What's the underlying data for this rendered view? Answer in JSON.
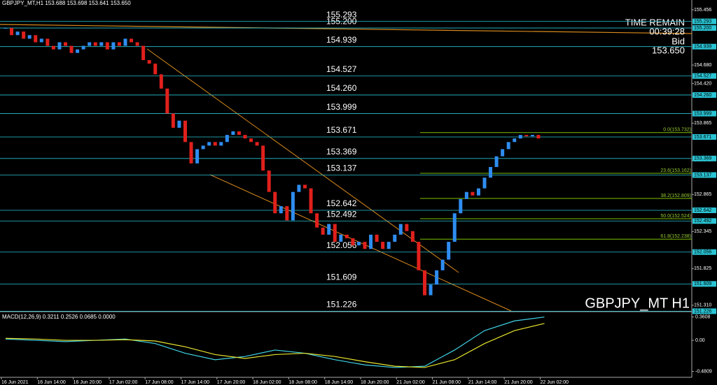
{
  "chart_data": {
    "type": "candlestick",
    "title": "GBPJPY_MT,H1  153.688 153.698 153.641 153.650",
    "symbol_label": "GBPJPY_MT H1",
    "info": [
      "TIME REMAIN",
      "00:39:28",
      "Bid",
      "153.650"
    ],
    "closes": [
      155.2,
      155.1,
      155.15,
      155.05,
      155.1,
      155.0,
      155.05,
      154.95,
      154.9,
      155.0,
      154.95,
      154.85,
      154.9,
      154.95,
      155.0,
      154.95,
      155.0,
      154.9,
      155.0,
      154.95,
      155.05,
      155.0,
      154.95,
      154.75,
      154.7,
      154.55,
      154.35,
      154.0,
      153.8,
      153.9,
      153.6,
      153.3,
      153.5,
      153.55,
      153.6,
      153.55,
      153.6,
      153.7,
      153.75,
      153.7,
      153.65,
      153.6,
      153.55,
      153.2,
      152.9,
      152.6,
      152.7,
      152.5,
      152.9,
      153.0,
      152.95,
      152.6,
      152.4,
      152.3,
      152.45,
      152.2,
      152.3,
      152.25,
      152.15,
      152.2,
      152.1,
      152.3,
      152.2,
      152.1,
      152.2,
      152.3,
      152.45,
      152.35,
      152.2,
      151.8,
      151.45,
      151.6,
      151.8,
      151.95,
      152.2,
      152.6,
      152.8,
      152.9,
      152.85,
      152.95,
      153.1,
      153.25,
      153.4,
      153.5,
      153.6,
      153.65,
      153.7,
      153.68,
      153.7,
      153.65
    ],
    "ylim": [
      151.23,
      155.593
    ],
    "yticks": [
      155.456,
      {
        "value": 154.68,
        "label": "154.680"
      },
      {
        "value": 154.42,
        "label": "154.420"
      },
      153.865,
      153.345,
      152.865,
      152.345,
      151.825,
      {
        "value": 151.31,
        "label": "151.310"
      }
    ],
    "levels": [
      155.293,
      {
        "value": 155.2,
        "label": "155.200"
      },
      154.939,
      154.527,
      {
        "value": 154.26,
        "label": "154.260"
      },
      153.999,
      153.671,
      153.369,
      153.137,
      152.642,
      152.492,
      152.056,
      151.609,
      151.226
    ],
    "fibs": [
      {
        "value": 153.732,
        "label": "0.0(153.732)"
      },
      {
        "value": 153.162,
        "label": "23.6(153.162)"
      },
      {
        "value": 152.809,
        "label": "38.2(152.809)"
      },
      {
        "value": 152.524,
        "label": "50.0(152.524)"
      },
      {
        "value": 152.238,
        "label": "61.8(152.238)"
      }
    ],
    "x_labels": [
      "16 Jun 2021",
      "16 Jun 14:00",
      "16 Jun 20:00",
      "17 Jun 02:00",
      "17 Jun 08:00",
      "17 Jun 14:00",
      "17 Jun 20:00",
      "18 Jun 02:00",
      "18 Jun 08:00",
      "18 Jun 14:00",
      "18 Jun 20:00",
      "21 Jun 02:00",
      "21 Jun 08:00",
      "21 Jun 14:00",
      "21 Jun 20:00",
      "22 Jun 02:00"
    ],
    "macd": {
      "title": "MACD(12,26,9) 0.3211 0.2526 0.0685 0.0000",
      "ylim": [
        -0.55,
        0.4
      ],
      "yticks": [
        0.3608,
        {
          "value": 0,
          "label": "0.00"
        },
        -0.4809
      ],
      "series": [
        {
          "name": "main",
          "color": "#3fd3e6",
          "values": [
            0.02,
            0.0,
            -0.02,
            0.0,
            0.02,
            -0.05,
            -0.2,
            -0.3,
            -0.25,
            -0.15,
            -0.2,
            -0.3,
            -0.38,
            -0.42,
            -0.4,
            -0.15,
            0.15,
            0.3,
            0.36
          ]
        },
        {
          "name": "signal",
          "color": "#e6e22e",
          "values": [
            0.03,
            0.02,
            0.0,
            0.0,
            0.01,
            -0.01,
            -0.1,
            -0.22,
            -0.28,
            -0.22,
            -0.2,
            -0.25,
            -0.33,
            -0.4,
            -0.42,
            -0.3,
            -0.05,
            0.15,
            0.26
          ]
        }
      ]
    }
  }
}
